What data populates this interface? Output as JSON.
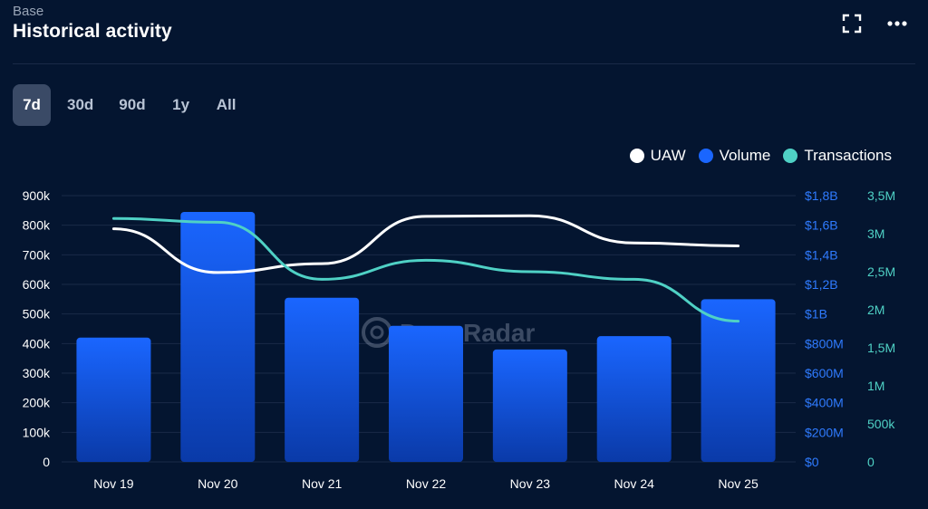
{
  "header": {
    "subtitle": "Base",
    "title": "Historical activity"
  },
  "toolbar": {
    "expand_icon": "expand-icon",
    "more_icon": "more-horizontal-icon"
  },
  "tabs": [
    {
      "label": "7d",
      "active": true
    },
    {
      "label": "30d",
      "active": false
    },
    {
      "label": "90d",
      "active": false
    },
    {
      "label": "1y",
      "active": false
    },
    {
      "label": "All",
      "active": false
    }
  ],
  "watermark": "DappRadar",
  "colors": {
    "background": "#041530",
    "uaw": "#ffffff",
    "volume": "#1a66ff",
    "transactions": "#4fd1c5",
    "grid": "#1a2a47",
    "left_axis": "#ffffff",
    "volume_axis": "#2f7bff",
    "tx_axis": "#4fd1c5"
  },
  "chart_data": {
    "type": "bar",
    "categories": [
      "Nov 19",
      "Nov 20",
      "Nov 21",
      "Nov 22",
      "Nov 23",
      "Nov 24",
      "Nov 25"
    ],
    "legend_position": "top-right",
    "grid": true,
    "series": [
      {
        "name": "UAW",
        "type": "line",
        "axis": "left",
        "color": "#ffffff",
        "values": [
          788000,
          640000,
          670000,
          830000,
          832000,
          740000,
          730000
        ]
      },
      {
        "name": "Volume",
        "type": "bar",
        "axis": "volume",
        "color": "#1a66ff",
        "values": [
          840000000,
          1690000000,
          1110000000,
          920000000,
          760000000,
          850000000,
          1100000000
        ]
      },
      {
        "name": "Transactions",
        "type": "line",
        "axis": "transactions",
        "color": "#4fd1c5",
        "values": [
          3200000,
          3150000,
          2400000,
          2650000,
          2500000,
          2400000,
          1850000
        ]
      }
    ],
    "axes": {
      "left": {
        "min": 0,
        "max": 900000,
        "ticks": [
          "0",
          "100k",
          "200k",
          "300k",
          "400k",
          "500k",
          "600k",
          "700k",
          "800k",
          "900k"
        ]
      },
      "volume": {
        "min": 0,
        "max": 1800000000,
        "ticks": [
          "$0",
          "$200M",
          "$400M",
          "$600M",
          "$800M",
          "$1B",
          "$1,2B",
          "$1,4B",
          "$1,6B",
          "$1,8B"
        ]
      },
      "transactions": {
        "min": 0,
        "max": 3500000,
        "ticks": [
          "0",
          "500k",
          "1M",
          "1,5M",
          "2M",
          "2,5M",
          "3M",
          "3,5M"
        ]
      }
    }
  }
}
